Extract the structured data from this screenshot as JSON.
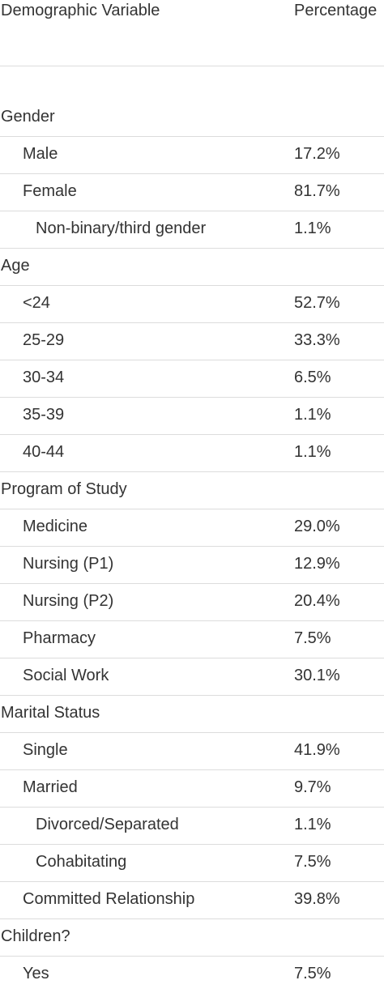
{
  "header": {
    "variable": "Demographic Variable",
    "percentage": "Percentage"
  },
  "rows": [
    {
      "label": "Gender",
      "value": "",
      "level": 0
    },
    {
      "label": "Male",
      "value": "17.2%",
      "level": 1
    },
    {
      "label": "Female",
      "value": "81.7%",
      "level": 1
    },
    {
      "label": "Non-binary/third gender",
      "value": "1.1%",
      "level": 2
    },
    {
      "label": "Age",
      "value": "",
      "level": 0
    },
    {
      "label": "<24",
      "value": "52.7%",
      "level": 1
    },
    {
      "label": "25-29",
      "value": "33.3%",
      "level": 1
    },
    {
      "label": "30-34",
      "value": "6.5%",
      "level": 1
    },
    {
      "label": "35-39",
      "value": "1.1%",
      "level": 1
    },
    {
      "label": "40-44",
      "value": "1.1%",
      "level": 1
    },
    {
      "label": "Program of Study",
      "value": "",
      "level": 0
    },
    {
      "label": "Medicine",
      "value": "29.0%",
      "level": 1
    },
    {
      "label": "Nursing (P1)",
      "value": "12.9%",
      "level": 1
    },
    {
      "label": "Nursing (P2)",
      "value": "20.4%",
      "level": 1
    },
    {
      "label": "Pharmacy",
      "value": "7.5%",
      "level": 1
    },
    {
      "label": "Social Work",
      "value": "30.1%",
      "level": 1
    },
    {
      "label": "Marital Status",
      "value": "",
      "level": 0
    },
    {
      "label": "Single",
      "value": "41.9%",
      "level": 1
    },
    {
      "label": "Married",
      "value": "9.7%",
      "level": 1
    },
    {
      "label": "Divorced/Separated",
      "value": "1.1%",
      "level": 2
    },
    {
      "label": "Cohabitating",
      "value": "7.5%",
      "level": 2
    },
    {
      "label": "Committed Relationship",
      "value": "39.8%",
      "level": 1
    },
    {
      "label": "Children?",
      "value": "",
      "level": 0
    },
    {
      "label": "Yes",
      "value": "7.5%",
      "level": 1
    }
  ]
}
